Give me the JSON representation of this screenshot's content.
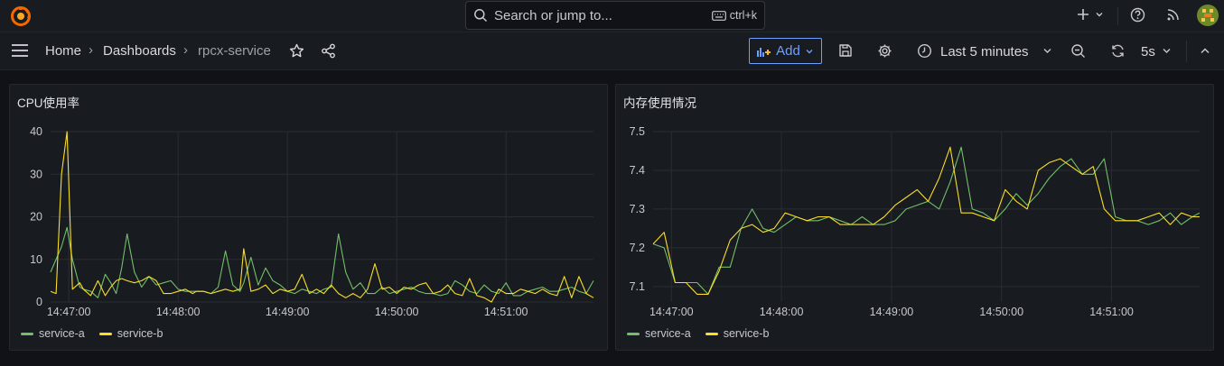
{
  "topbar": {
    "search_placeholder": "Search or jump to...",
    "search_shortcut": "ctrl+k"
  },
  "navbar": {
    "breadcrumbs": [
      "Home",
      "Dashboards",
      "rpcx-service"
    ],
    "add_label": "Add",
    "time_range": "Last 5 minutes",
    "refresh_interval": "5s"
  },
  "colors": {
    "series_a": "#73bf69",
    "series_b": "#fade2a",
    "accent": "#6e9fff"
  },
  "panels": [
    {
      "title": "CPU使用率"
    },
    {
      "title": "内存使用情况"
    }
  ],
  "chart_data": [
    {
      "type": "line",
      "title": "CPU使用率",
      "xlabel": "",
      "ylabel": "",
      "x_ticks": [
        "14:47:00",
        "14:48:00",
        "14:49:00",
        "14:50:00",
        "14:51:00"
      ],
      "x_range": [
        "14:46:50",
        "14:51:48"
      ],
      "y_ticks": [
        0,
        10,
        20,
        30,
        40
      ],
      "ylim": [
        0,
        40
      ],
      "grid": true,
      "legend": "bottom-left",
      "series": [
        {
          "name": "service-a",
          "color": "#73bf69",
          "x": [
            0,
            6,
            9,
            12,
            16,
            18,
            22,
            26,
            30,
            33,
            36,
            39,
            42,
            46,
            50,
            54,
            58,
            62,
            66,
            70,
            74,
            78,
            80,
            84,
            88,
            92,
            96,
            100,
            104,
            106,
            110,
            114,
            118,
            122,
            126,
            130,
            134,
            138,
            142,
            146,
            150,
            154,
            158,
            162,
            166,
            170,
            174,
            178,
            182,
            186,
            190,
            194,
            198,
            202,
            206,
            210,
            214,
            218,
            222,
            226,
            230,
            234,
            238,
            242,
            246,
            250,
            254,
            258,
            262,
            266,
            270,
            274,
            278,
            282,
            286,
            290,
            294,
            298
          ],
          "values": [
            7,
            13,
            17.5,
            10,
            3.5,
            3,
            2.5,
            1,
            6.5,
            4.5,
            2,
            8,
            16,
            7,
            3.5,
            6,
            4,
            4.5,
            5,
            3,
            2.5,
            2.5,
            2.5,
            2.5,
            2,
            3.5,
            12,
            4,
            2.5,
            4.5,
            10.5,
            4,
            8,
            5,
            4,
            2.5,
            2,
            3,
            2.5,
            2,
            3,
            3.5,
            16,
            7,
            3,
            4.5,
            2,
            2,
            3.5,
            2,
            2.5,
            3,
            3.5,
            2.5,
            2,
            2,
            1.5,
            2,
            5,
            4,
            2.5,
            2,
            4,
            2.5,
            2,
            4.5,
            1.5,
            1.5,
            2.5,
            3,
            3.5,
            2.5,
            2.5,
            3,
            3.5,
            2.5,
            2,
            5
          ]
        },
        {
          "name": "service-b",
          "color": "#fade2a",
          "x": [
            0,
            3,
            6,
            9,
            12,
            16,
            18,
            22,
            26,
            30,
            33,
            36,
            39,
            42,
            46,
            50,
            54,
            58,
            62,
            66,
            70,
            74,
            78,
            80,
            84,
            88,
            92,
            96,
            100,
            104,
            106,
            110,
            114,
            118,
            122,
            126,
            130,
            134,
            138,
            142,
            146,
            150,
            154,
            158,
            162,
            166,
            170,
            174,
            178,
            182,
            186,
            190,
            194,
            198,
            202,
            206,
            210,
            214,
            218,
            222,
            226,
            230,
            234,
            238,
            242,
            246,
            250,
            254,
            258,
            262,
            266,
            270,
            274,
            278,
            282,
            286,
            290,
            294,
            298
          ],
          "values": [
            2.5,
            2,
            30,
            40,
            3,
            4.5,
            3,
            1.5,
            5,
            1.5,
            3.5,
            5,
            5.5,
            5,
            4.5,
            5,
            6,
            5,
            2,
            2,
            2.5,
            3,
            2,
            2.5,
            2.5,
            2,
            2.5,
            3,
            2.5,
            3,
            12.5,
            2.5,
            3,
            4,
            2,
            3,
            2.5,
            3,
            6.5,
            2,
            3,
            2,
            4,
            2,
            1,
            2,
            1,
            3,
            9,
            3,
            3.5,
            2,
            3.5,
            3,
            4,
            4.5,
            2,
            2.5,
            4,
            2,
            1.5,
            5.5,
            1.5,
            1,
            0,
            3,
            2,
            2,
            3,
            2.5,
            2,
            3,
            2,
            1.5,
            6,
            1,
            6,
            2,
            1
          ]
        }
      ]
    },
    {
      "type": "line",
      "title": "内存使用情况",
      "xlabel": "",
      "ylabel": "",
      "x_ticks": [
        "14:47:00",
        "14:48:00",
        "14:49:00",
        "14:50:00",
        "14:51:00"
      ],
      "x_range": [
        "14:46:50",
        "14:51:48"
      ],
      "y_ticks": [
        7.1,
        7.2,
        7.3,
        7.4,
        7.5
      ],
      "ylim": [
        7.06,
        7.5
      ],
      "grid": true,
      "legend": "bottom-left",
      "series": [
        {
          "name": "service-a",
          "color": "#73bf69",
          "x": [
            0,
            6,
            12,
            18,
            24,
            30,
            36,
            42,
            48,
            54,
            60,
            66,
            72,
            78,
            84,
            90,
            96,
            102,
            108,
            114,
            120,
            126,
            132,
            138,
            144,
            150,
            156,
            162,
            168,
            174,
            180,
            186,
            192,
            198,
            204,
            210,
            216,
            222,
            228,
            234,
            240,
            246,
            252,
            258,
            264,
            270,
            276,
            282,
            288,
            294,
            298
          ],
          "values": [
            7.21,
            7.2,
            7.11,
            7.11,
            7.11,
            7.08,
            7.15,
            7.15,
            7.25,
            7.3,
            7.25,
            7.24,
            7.26,
            7.28,
            7.27,
            7.27,
            7.28,
            7.27,
            7.26,
            7.28,
            7.26,
            7.26,
            7.27,
            7.3,
            7.31,
            7.32,
            7.3,
            7.37,
            7.46,
            7.3,
            7.29,
            7.27,
            7.3,
            7.34,
            7.31,
            7.34,
            7.38,
            7.41,
            7.43,
            7.39,
            7.39,
            7.43,
            7.28,
            7.27,
            7.27,
            7.26,
            7.27,
            7.29,
            7.26,
            7.28,
            7.29
          ]
        },
        {
          "name": "service-b",
          "color": "#fade2a",
          "x": [
            0,
            6,
            12,
            18,
            24,
            30,
            36,
            42,
            48,
            54,
            60,
            66,
            72,
            78,
            84,
            90,
            96,
            102,
            108,
            114,
            120,
            126,
            132,
            138,
            144,
            150,
            156,
            162,
            168,
            174,
            180,
            186,
            192,
            198,
            204,
            210,
            216,
            222,
            228,
            234,
            240,
            246,
            252,
            258,
            264,
            270,
            276,
            282,
            288,
            294,
            298
          ],
          "values": [
            7.21,
            7.24,
            7.11,
            7.11,
            7.08,
            7.08,
            7.14,
            7.22,
            7.25,
            7.26,
            7.24,
            7.25,
            7.29,
            7.28,
            7.27,
            7.28,
            7.28,
            7.26,
            7.26,
            7.26,
            7.26,
            7.28,
            7.31,
            7.33,
            7.35,
            7.32,
            7.38,
            7.46,
            7.29,
            7.29,
            7.28,
            7.27,
            7.35,
            7.32,
            7.3,
            7.4,
            7.42,
            7.43,
            7.41,
            7.39,
            7.41,
            7.3,
            7.27,
            7.27,
            7.27,
            7.28,
            7.29,
            7.26,
            7.29,
            7.28,
            7.28
          ]
        }
      ]
    }
  ]
}
